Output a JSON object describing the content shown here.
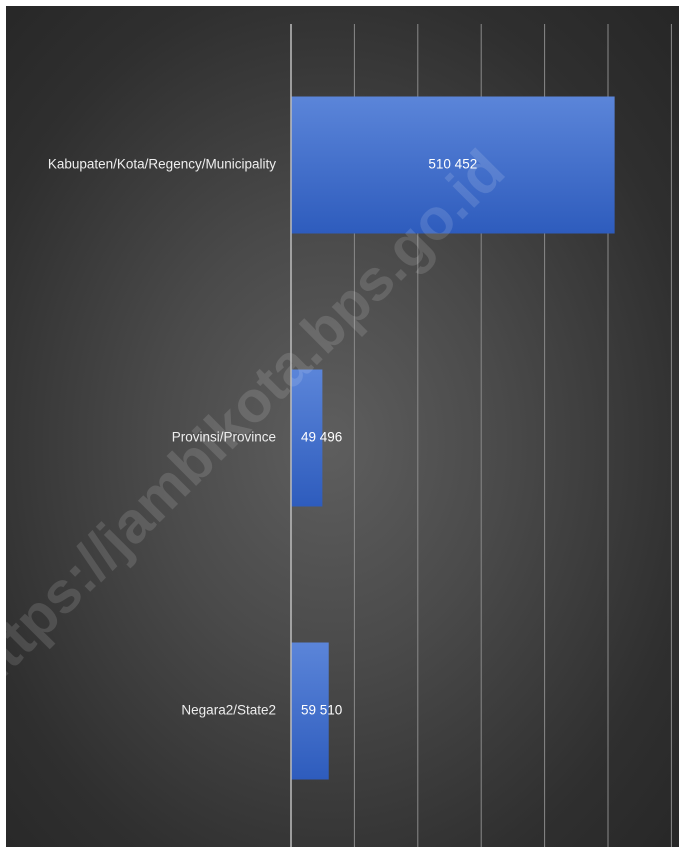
{
  "chart_data": {
    "type": "bar",
    "orientation": "horizontal",
    "categories": [
      "Kabupaten/Kota/Regency/Municipality",
      "Provinsi/Province",
      "Negara2/State2"
    ],
    "values": [
      510452,
      49496,
      59510
    ],
    "value_labels": [
      "510 452",
      "49 496",
      "59 510"
    ],
    "xlim": [
      0,
      600000
    ],
    "grid": true,
    "legend": "none",
    "title": "",
    "xlabel": "",
    "ylabel": ""
  },
  "watermark": "https://jambikota.bps.go.id",
  "colors": {
    "bar_top": "#5b85d9",
    "bar_bottom": "#2e5cbd",
    "grid": "#8a8a8a",
    "axis": "#bdbdbd"
  }
}
